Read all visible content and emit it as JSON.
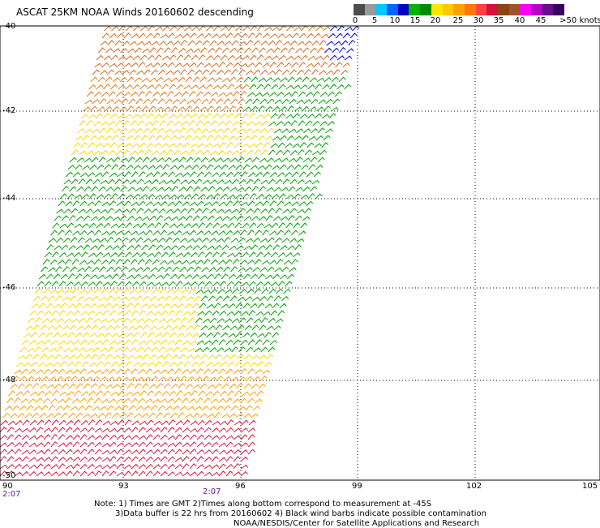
{
  "title": "ASCAT 25KM NOAA Winds 20160602 descending",
  "legend": {
    "colors": [
      "#4d4d4d",
      "#9a9a9a",
      "#00c8ff",
      "#0064ff",
      "#0000c8",
      "#00b400",
      "#008c00",
      "#ffe600",
      "#ffc800",
      "#ffa000",
      "#ff7800",
      "#ff4040",
      "#d2143c",
      "#8b4513",
      "#a0522d",
      "#ff00ff",
      "#b400c8",
      "#6a0d8a",
      "#3a0060"
    ],
    "labels": [
      "0",
      "5",
      "10",
      "15",
      "20",
      "25",
      "30",
      "35",
      "40",
      "45",
      ">50 knots"
    ]
  },
  "axes": {
    "lat_labels": [
      "-40",
      "-42",
      "-44",
      "-46",
      "-48",
      "-50"
    ],
    "lon_labels": [
      "90",
      "93",
      "96",
      "99",
      "102",
      "105"
    ],
    "lat_range": [
      -50,
      -40
    ],
    "lon_range": [
      90,
      105
    ]
  },
  "times": [
    "2:07",
    "2:07"
  ],
  "notes": {
    "line1": "Note: 1) Times are GMT 2)Times along bottom correspond to measurement at -45S",
    "line2": "3)Data buffer is 22 hrs from 20160602 4) Black wind barbs indicate possible contamination",
    "line3": "NOAA/NESDIS/Center for Satellite Applications and Research"
  }
}
